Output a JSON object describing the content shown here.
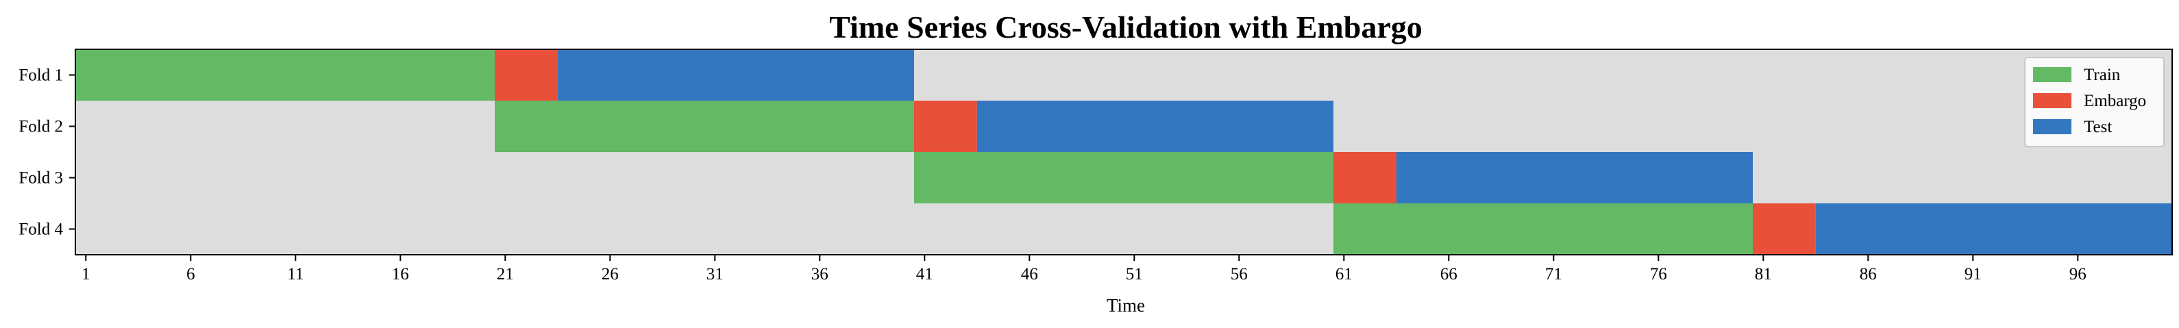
{
  "chart_data": {
    "type": "timeline",
    "title": "Time Series Cross-Validation with Embargo",
    "xlabel": "Time",
    "ylabel": "",
    "xlim": [
      0.5,
      100.5
    ],
    "x_ticks": [
      1,
      6,
      11,
      16,
      21,
      26,
      31,
      36,
      41,
      46,
      51,
      56,
      61,
      66,
      71,
      76,
      81,
      86,
      91,
      96
    ],
    "background_color": "#dddddd",
    "legend": {
      "placement": "top-right",
      "entries": [
        {
          "name": "Train",
          "color": "#63b964"
        },
        {
          "name": "Embargo",
          "color": "#e8503a"
        },
        {
          "name": "Test",
          "color": "#3377c0"
        }
      ]
    },
    "folds": [
      {
        "label": "Fold 1",
        "segments": [
          {
            "kind": "Train",
            "start": 1,
            "end": 20
          },
          {
            "kind": "Embargo",
            "start": 21,
            "end": 23
          },
          {
            "kind": "Test",
            "start": 24,
            "end": 40
          }
        ]
      },
      {
        "label": "Fold 2",
        "segments": [
          {
            "kind": "Train",
            "start": 21,
            "end": 40
          },
          {
            "kind": "Embargo",
            "start": 41,
            "end": 43
          },
          {
            "kind": "Test",
            "start": 44,
            "end": 60
          }
        ]
      },
      {
        "label": "Fold 3",
        "segments": [
          {
            "kind": "Train",
            "start": 41,
            "end": 60
          },
          {
            "kind": "Embargo",
            "start": 61,
            "end": 63
          },
          {
            "kind": "Test",
            "start": 64,
            "end": 80
          }
        ]
      },
      {
        "label": "Fold 4",
        "segments": [
          {
            "kind": "Train",
            "start": 61,
            "end": 80
          },
          {
            "kind": "Embargo",
            "start": 81,
            "end": 83
          },
          {
            "kind": "Test",
            "start": 84,
            "end": 100
          }
        ]
      }
    ]
  }
}
